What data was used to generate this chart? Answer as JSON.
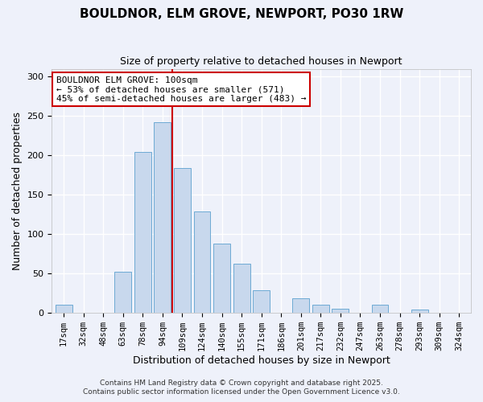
{
  "title": "BOULDNOR, ELM GROVE, NEWPORT, PO30 1RW",
  "subtitle": "Size of property relative to detached houses in Newport",
  "xlabel": "Distribution of detached houses by size in Newport",
  "ylabel": "Number of detached properties",
  "bar_labels": [
    "17sqm",
    "32sqm",
    "48sqm",
    "63sqm",
    "78sqm",
    "94sqm",
    "109sqm",
    "124sqm",
    "140sqm",
    "155sqm",
    "171sqm",
    "186sqm",
    "201sqm",
    "217sqm",
    "232sqm",
    "247sqm",
    "263sqm",
    "278sqm",
    "293sqm",
    "309sqm",
    "324sqm"
  ],
  "bar_values": [
    10,
    0,
    0,
    52,
    204,
    242,
    184,
    129,
    88,
    62,
    29,
    0,
    19,
    10,
    5,
    0,
    10,
    0,
    4,
    0,
    0
  ],
  "bar_color": "#c8d8ed",
  "bar_edge_color": "#6daad4",
  "vline_x_index": 5.5,
  "vline_color": "#cc0000",
  "annotation_title": "BOULDNOR ELM GROVE: 100sqm",
  "annotation_line1": "← 53% of detached houses are smaller (571)",
  "annotation_line2": "45% of semi-detached houses are larger (483) →",
  "annotation_box_color": "#cc0000",
  "ylim": [
    0,
    310
  ],
  "yticks": [
    0,
    50,
    100,
    150,
    200,
    250,
    300
  ],
  "background_color": "#eef1fa",
  "footer1": "Contains HM Land Registry data © Crown copyright and database right 2025.",
  "footer2": "Contains public sector information licensed under the Open Government Licence v3.0."
}
